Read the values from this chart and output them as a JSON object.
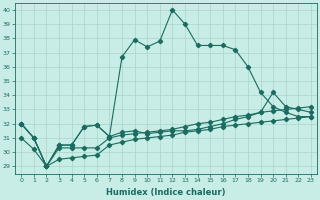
{
  "xlabel": "Humidex (Indice chaleur)",
  "ylabel": "",
  "background_color": "#c8ece6",
  "grid_color": "#aad4cc",
  "line_color": "#1a6b60",
  "xlim": [
    -0.5,
    23.5
  ],
  "ylim": [
    28.5,
    40.5
  ],
  "yticks": [
    29,
    30,
    31,
    32,
    33,
    34,
    35,
    36,
    37,
    38,
    39,
    40
  ],
  "xticks": [
    0,
    1,
    2,
    3,
    4,
    5,
    6,
    7,
    8,
    9,
    10,
    11,
    12,
    13,
    14,
    15,
    16,
    17,
    18,
    19,
    20,
    21,
    22,
    23
  ],
  "line1": [
    32.0,
    31.0,
    29.0,
    30.5,
    30.5,
    31.8,
    31.9,
    31.1,
    36.7,
    37.9,
    37.4,
    37.8,
    40.0,
    39.0,
    37.5,
    37.5,
    37.5,
    37.2,
    36.0,
    34.2,
    33.2,
    32.8,
    32.5,
    32.5
  ],
  "line2": [
    32.0,
    31.0,
    29.0,
    30.5,
    30.5,
    31.8,
    31.9,
    31.1,
    31.4,
    31.5,
    31.3,
    31.4,
    31.5,
    31.5,
    31.6,
    31.8,
    32.0,
    32.3,
    32.5,
    32.8,
    34.2,
    33.2,
    33.0,
    32.8
  ],
  "line3": [
    32.0,
    31.0,
    29.0,
    30.3,
    30.3,
    30.3,
    30.3,
    31.0,
    31.2,
    31.3,
    31.4,
    31.5,
    31.6,
    31.8,
    32.0,
    32.1,
    32.3,
    32.5,
    32.6,
    32.8,
    32.9,
    33.0,
    33.1,
    33.2
  ],
  "line4": [
    31.0,
    30.2,
    29.0,
    29.5,
    29.6,
    29.7,
    29.8,
    30.5,
    30.7,
    30.9,
    31.0,
    31.1,
    31.2,
    31.4,
    31.5,
    31.6,
    31.8,
    31.9,
    32.0,
    32.1,
    32.2,
    32.3,
    32.4,
    32.5
  ]
}
